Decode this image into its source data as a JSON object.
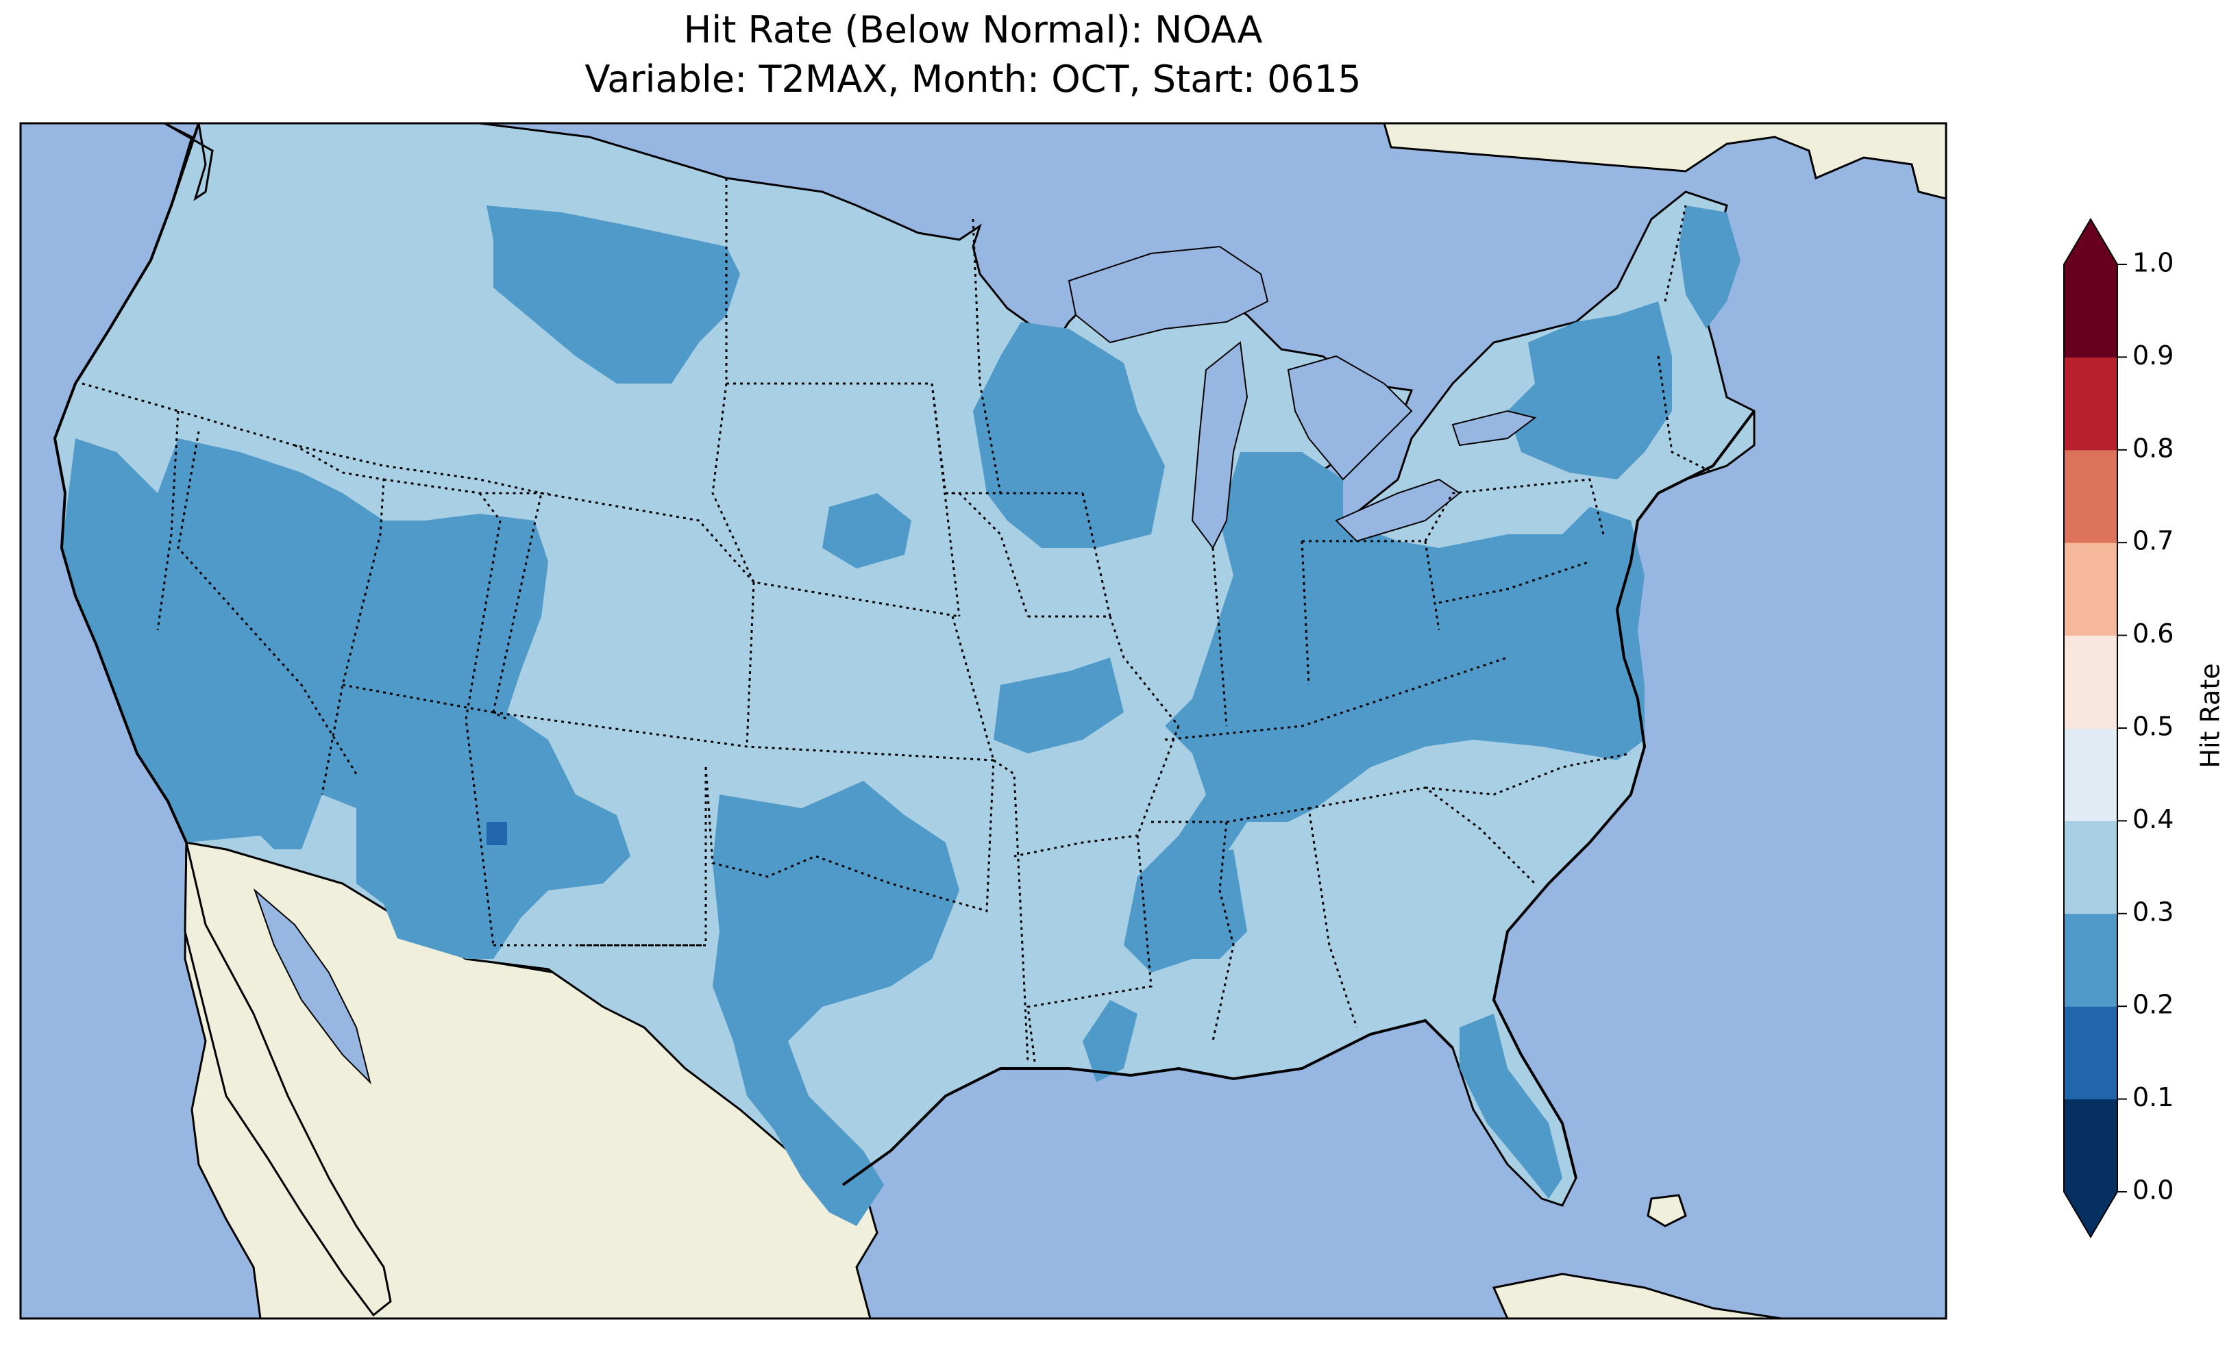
{
  "title_line1": "Hit Rate (Below Normal): NOAA",
  "title_line2": "Variable: T2MAX, Month: OCT, Start: 0615",
  "map": {
    "projection": "lambert-conformal",
    "region": "contiguous-united-states",
    "ocean_color": "#97b6e1",
    "land_color": "#efefdb",
    "state_borders": "dotted",
    "coastlines": "solid"
  },
  "colorbar": {
    "label": "Hit Rate",
    "ticks": [
      "0.0",
      "0.1",
      "0.2",
      "0.3",
      "0.4",
      "0.5",
      "0.6",
      "0.7",
      "0.8",
      "0.9",
      "1.0"
    ],
    "bins": [
      {
        "range": [
          0.0,
          0.1
        ],
        "color": "#053061"
      },
      {
        "range": [
          0.1,
          0.2
        ],
        "color": "#2166ac"
      },
      {
        "range": [
          0.2,
          0.3
        ],
        "color": "#4f9ac8"
      },
      {
        "range": [
          0.3,
          0.4
        ],
        "color": "#a8cfe4"
      },
      {
        "range": [
          0.4,
          0.5
        ],
        "color": "#e0ebf3"
      },
      {
        "range": [
          0.5,
          0.6
        ],
        "color": "#f9e6dc"
      },
      {
        "range": [
          0.6,
          0.7
        ],
        "color": "#f6b89a"
      },
      {
        "range": [
          0.7,
          0.8
        ],
        "color": "#dd735b"
      },
      {
        "range": [
          0.8,
          0.9
        ],
        "color": "#b8202d"
      },
      {
        "range": [
          0.9,
          1.0
        ],
        "color": "#67001f"
      }
    ],
    "extend": "both"
  }
}
